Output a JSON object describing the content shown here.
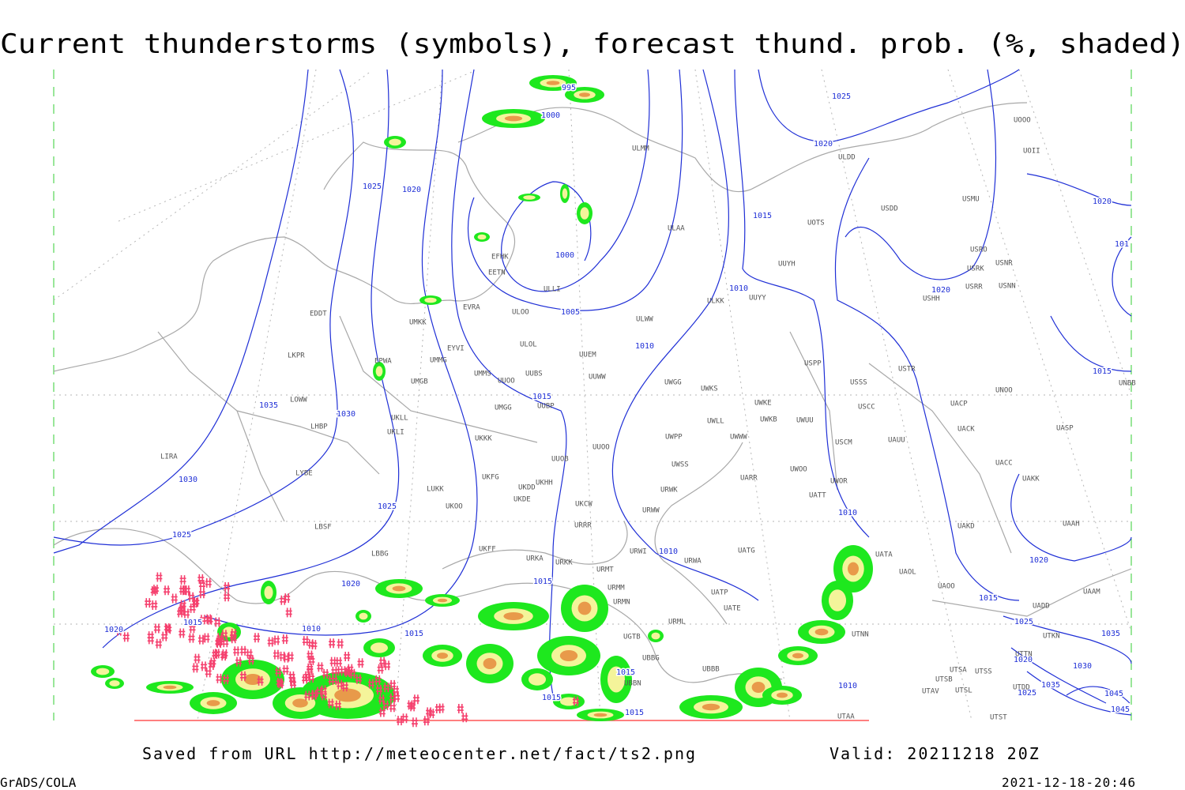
{
  "header": {
    "title": "Current thunderstorms (symbols), forecast thund. prob. (%, shaded)"
  },
  "map": {
    "isobar_labels": [
      "995",
      "1000",
      "1025",
      "1020",
      "1025",
      "1020",
      "1015",
      "1000",
      "1010",
      "1020",
      "1020",
      "1005",
      "1010",
      "1035",
      "1030",
      "1015",
      "1030",
      "1025",
      "1025",
      "1010",
      "1010",
      "1020",
      "1020",
      "1015",
      "1015",
      "1020",
      "1015",
      "1010",
      "1015",
      "1015",
      "1015",
      "1015",
      "1010",
      "1025",
      "1035",
      "1020",
      "1030",
      "1035",
      "1025",
      "1045",
      "1045",
      "1015",
      "101"
    ],
    "stations": [
      "UOOO",
      "UOII",
      "ULDD",
      "ULMM",
      "USDD",
      "USMU",
      "ULAA",
      "UOTS",
      "UUYH",
      "USRO",
      "USRK",
      "USNR",
      "USNN",
      "USRR",
      "USHH",
      "ULKK",
      "UUYY",
      "EFHK",
      "EETN",
      "ULLI",
      "EVRA",
      "ULOO",
      "UMKK",
      "ULWW",
      "EDDT",
      "EYVI",
      "ULOL",
      "UUEM",
      "LKPR",
      "UMMG",
      "EPWA",
      "UMMS",
      "UUBS",
      "UUOO",
      "UUWW",
      "UWGG",
      "UWKS",
      "USPP",
      "USTR",
      "USSS",
      "UNOO",
      "UNBB",
      "UMGB",
      "UUBP",
      "UMGG",
      "UWKE",
      "UACP",
      "USCC",
      "LOWW",
      "UKLL",
      "UWLL",
      "UWKB",
      "UWUU",
      "UKLI",
      "LHBP",
      "UKKK",
      "UWPP",
      "UWWW",
      "USCM",
      "UAUU",
      "UACK",
      "UASP",
      "UUOO",
      "LIRA",
      "UUOB",
      "UWSS",
      "UACC",
      "UAKK",
      "LYBE",
      "UKHH",
      "UKFG",
      "UARR",
      "UWOO",
      "UWOR",
      "LUKK",
      "UKDD",
      "URWK",
      "UATT",
      "UKOO",
      "UKDE",
      "UKCW",
      "URWW",
      "UAKD",
      "LBSF",
      "URRR",
      "UAAH",
      "UKFF",
      "LBBG",
      "URWI",
      "UATG",
      "URKA",
      "URKK",
      "UATA",
      "URMT",
      "URWA",
      "UAOL",
      "URMM",
      "UAOO",
      "UATP",
      "UAAM",
      "URMN",
      "UATE",
      "UADD",
      "UTKN",
      "URML",
      "UGTB",
      "UTNN",
      "UBBG",
      "UTTN",
      "UBBB",
      "UTSA",
      "UTSS",
      "UTSB",
      "UTAV",
      "UTSL",
      "UTDD",
      "UTAA",
      "UTST",
      "UBBN"
    ]
  },
  "footer": {
    "source": "Saved from URL http://meteocenter.net/fact/ts2.png",
    "valid": "Valid: 20211218 20Z",
    "software": "GrADS/COLA",
    "timestamp": "2021-12-18-20:46"
  }
}
